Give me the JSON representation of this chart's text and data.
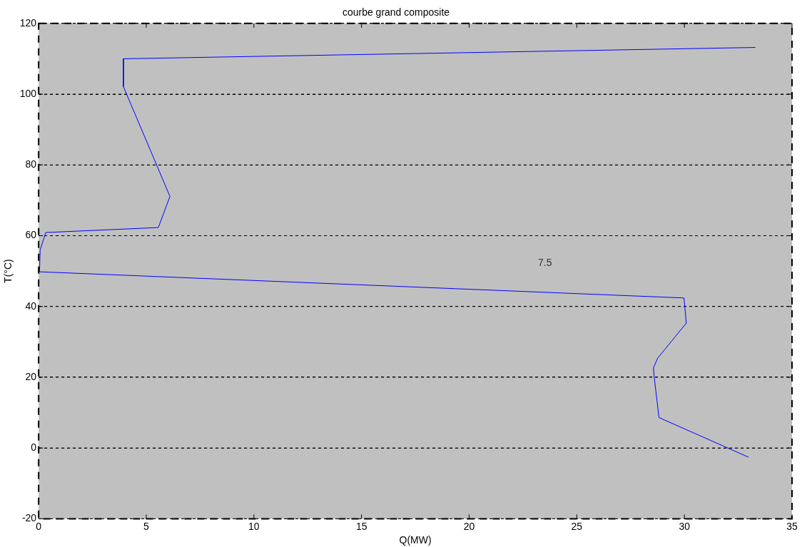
{
  "chart_data": {
    "type": "line",
    "title": "courbe grand composite",
    "xlabel": "Q(MW)",
    "ylabel": "T(°C)",
    "xlim": [
      0,
      35
    ],
    "xticks": [
      0,
      5,
      10,
      15,
      20,
      25,
      30,
      35
    ],
    "ylim": [
      -20,
      120
    ],
    "yticks": [
      -20,
      0,
      20,
      40,
      60,
      80,
      100,
      120
    ],
    "grid": "y",
    "marker": "none",
    "line_style": "solid",
    "annotations": [
      "7.5"
    ],
    "series": [
      {
        "color": "#0000ff",
        "x": [
          33.3,
          3.94,
          3.94,
          6.1,
          5.56,
          0.33,
          0.07,
          0.04,
          29.98,
          30.09,
          28.76,
          28.56,
          28.6,
          28.82,
          32.98
        ],
        "values": [
          113.2,
          110,
          102.1,
          71.1,
          62.3,
          60.9,
          56,
          49.8,
          42.4,
          35.3,
          25.4,
          22.6,
          19.9,
          8.6,
          -2.6
        ]
      }
    ]
  }
}
